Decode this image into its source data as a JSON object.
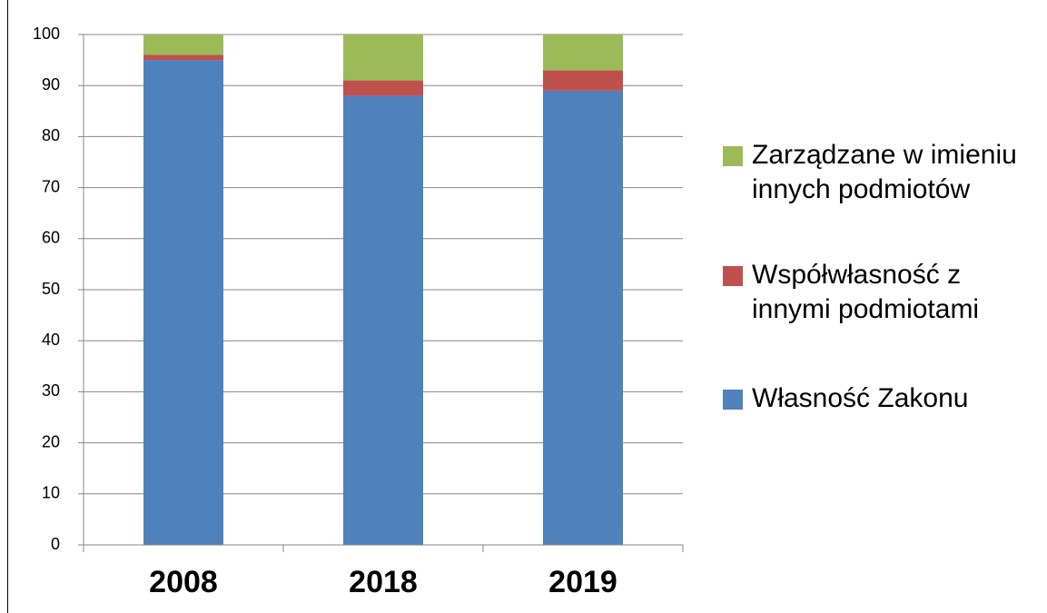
{
  "chart_data": {
    "type": "stacked_bar",
    "categories": [
      "2008",
      "2018",
      "2019"
    ],
    "series": [
      {
        "name": "Własność Zakonu",
        "color": "#4f81bd",
        "values": [
          95,
          88,
          89
        ]
      },
      {
        "name": "Współwłasność z innymi podmiotami",
        "color": "#c0504d",
        "values": [
          1,
          3,
          4
        ]
      },
      {
        "name": "Zarządzane w imieniu innych podmiotów",
        "color": "#9bbb59",
        "values": [
          4,
          9,
          7
        ]
      }
    ],
    "ylim": [
      0,
      100
    ],
    "yticks": [
      0,
      10,
      20,
      30,
      40,
      50,
      60,
      70,
      80,
      90,
      100
    ],
    "grid": true,
    "legend": "right"
  }
}
